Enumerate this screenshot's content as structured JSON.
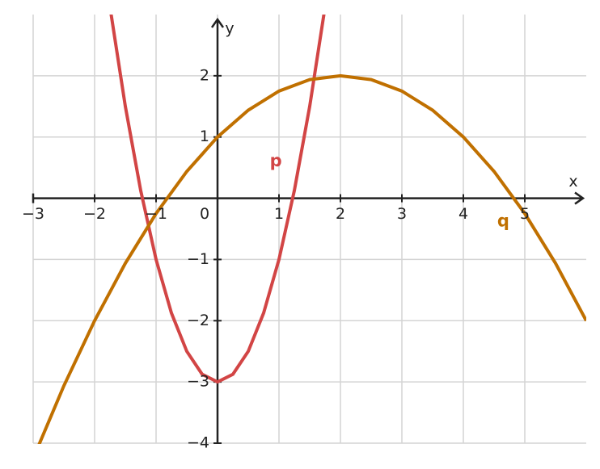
{
  "chart_data": {
    "type": "line",
    "x_label": "x",
    "y_label": "y",
    "xlim": [
      -3,
      6
    ],
    "ylim": [
      -4,
      3
    ],
    "xticks": [
      {
        "value": -3,
        "label": "−3"
      },
      {
        "value": -2,
        "label": "−2"
      },
      {
        "value": -1,
        "label": "−1"
      },
      0,
      1,
      2,
      3,
      4,
      5
    ],
    "yticks": [
      {
        "value": -4,
        "label": "−4"
      },
      {
        "value": -3,
        "label": "−3"
      },
      {
        "value": -2,
        "label": "−2"
      },
      {
        "value": -1,
        "label": "−1"
      },
      1,
      2
    ],
    "grid": true,
    "series": [
      {
        "name": "p",
        "color": "#d24545",
        "x": [
          -1.75,
          -1.5,
          -1.25,
          -1,
          -0.75,
          -0.5,
          -0.25,
          0,
          0.25,
          0.5,
          0.75,
          1,
          1.25,
          1.5,
          1.75
        ],
        "values": [
          3.125,
          1.5,
          0.125,
          -1,
          -1.875,
          -2.5,
          -2.875,
          -3,
          -2.875,
          -2.5,
          -1.875,
          -1,
          0.125,
          1.5,
          3.125
        ]
      },
      {
        "name": "q",
        "color": "#c07000",
        "x": [
          -3,
          -2.5,
          -2,
          -1.5,
          -1,
          -0.5,
          0,
          0.5,
          1,
          1.5,
          2,
          2.5,
          3,
          3.5,
          4,
          4.5,
          5,
          5.5,
          6
        ],
        "values": [
          -4.25,
          -3.0625,
          -2,
          -1.0625,
          -0.25,
          0.4375,
          1,
          1.4375,
          1.75,
          1.9375,
          2,
          1.9375,
          1.75,
          1.4375,
          1,
          0.4375,
          -0.25,
          -1.0625,
          -2
        ]
      }
    ]
  }
}
